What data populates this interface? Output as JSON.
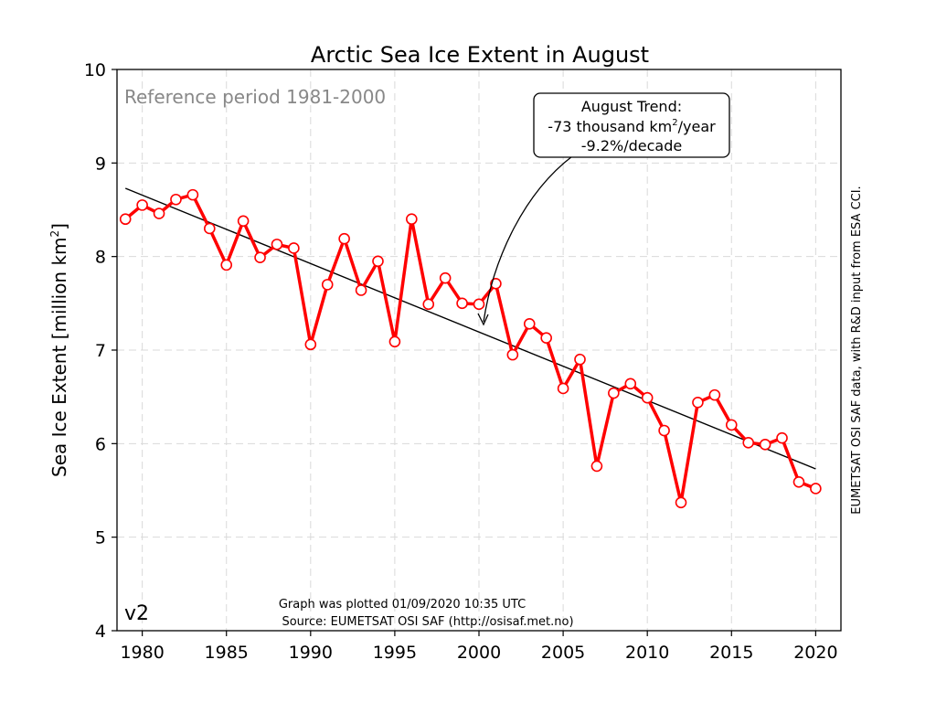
{
  "chart_data": {
    "type": "line",
    "title": "Arctic Sea Ice Extent in August",
    "ylabel_main": "Sea Ice Extent [million km",
    "ylabel_sup": "2",
    "ylabel_end": "]",
    "xlim": [
      1978.5,
      2021.5
    ],
    "ylim": [
      4,
      10
    ],
    "xticks": [
      1980,
      1985,
      1990,
      1995,
      2000,
      2005,
      2010,
      2015,
      2020
    ],
    "yticks": [
      4,
      5,
      6,
      7,
      8,
      9,
      10
    ],
    "grid": true,
    "series": [
      {
        "color": "#ff0000",
        "x": [
          1979,
          1980,
          1981,
          1982,
          1983,
          1984,
          1985,
          1986,
          1987,
          1988,
          1989,
          1990,
          1991,
          1992,
          1993,
          1994,
          1995,
          1996,
          1997,
          1998,
          1999,
          2000,
          2001,
          2002,
          2003,
          2004,
          2005,
          2006,
          2007,
          2008,
          2009,
          2010,
          2011,
          2012,
          2013,
          2014,
          2015,
          2016,
          2017,
          2018,
          2019,
          2020
        ],
        "values": [
          8.4,
          8.55,
          8.46,
          8.61,
          8.66,
          8.3,
          7.91,
          8.38,
          7.99,
          8.13,
          8.09,
          7.06,
          7.7,
          8.19,
          7.64,
          7.95,
          7.09,
          8.4,
          7.49,
          7.77,
          7.5,
          7.49,
          7.71,
          6.95,
          7.28,
          7.13,
          6.59,
          6.9,
          5.76,
          6.54,
          6.64,
          6.49,
          6.14,
          5.37,
          6.44,
          6.52,
          6.2,
          6.01,
          5.99,
          6.06,
          5.59,
          5.52
        ]
      }
    ],
    "trend": {
      "color": "#000000",
      "x": [
        1979,
        2020
      ],
      "y": [
        8.73,
        5.73
      ]
    },
    "reference_note": "Reference period 1981-2000",
    "trend_box": {
      "line1": "August Trend:",
      "line2_pre": "-73 thousand km",
      "line2_sup": "2",
      "line2_post": "/year",
      "line3": "-9.2%/decade",
      "arrow_target": [
        2000,
        7.23
      ]
    },
    "version": "v2",
    "plotted_note": "Graph was plotted 01/09/2020 10:35 UTC",
    "source_note": "Source: EUMETSAT OSI SAF (http://osisaf.met.no)",
    "side_note": "EUMETSAT OSI SAF data, with R&D input from ESA CCI."
  }
}
